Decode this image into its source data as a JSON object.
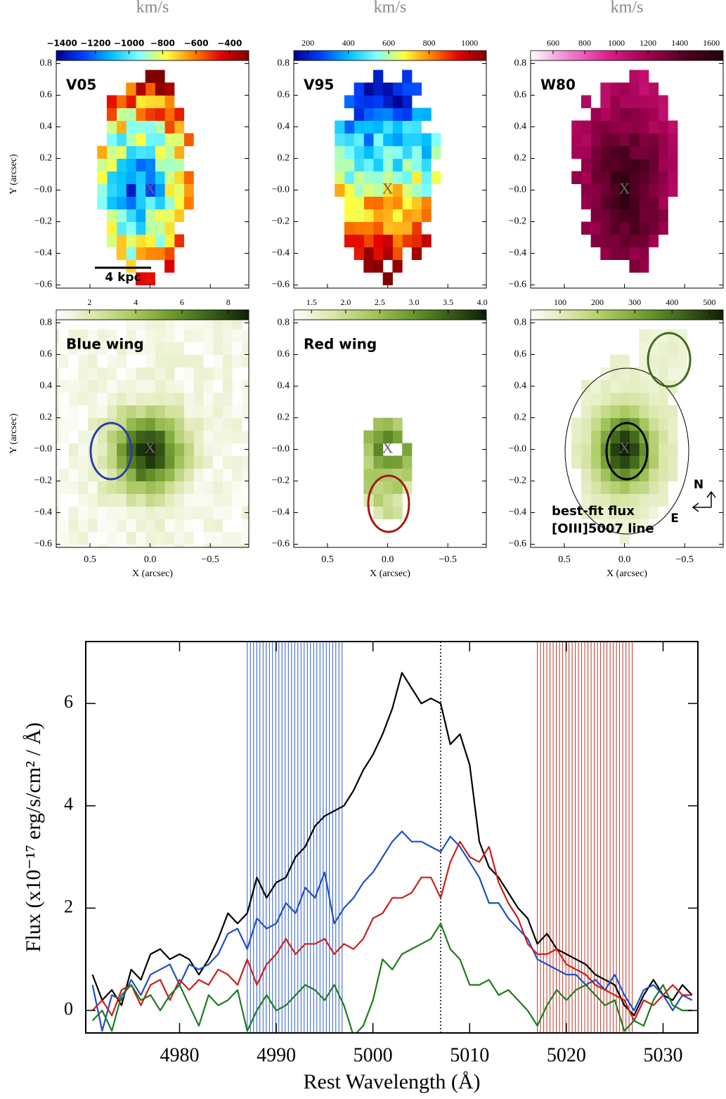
{
  "maps": {
    "axes": {
      "xlabel": "X (arcsec)",
      "ylabel": "Y (arcsec)",
      "xlim": [
        0.78,
        -0.82
      ],
      "ylim": [
        -0.62,
        0.82
      ],
      "xticks": [
        0.5,
        {
          "value": 0,
          "label": "0.0"
        },
        {
          "value": -0.5,
          "label": "−0.5"
        }
      ],
      "yticks": [
        0.8,
        0.6,
        0.4,
        0.2,
        {
          "value": 0,
          "label": "−0.0"
        },
        {
          "value": -0.2,
          "label": "−0.2"
        },
        {
          "value": -0.4,
          "label": "−0.4"
        },
        {
          "value": -0.6,
          "label": "−0.6"
        }
      ]
    },
    "center_marker": "X",
    "panels": [
      {
        "title": "V05",
        "unit": "km/s",
        "scale_bar": "4 kpc",
        "colorbar": {
          "lim": [
            -1434,
            -286
          ],
          "colors": [
            "#00008f",
            "#0040ff",
            "#00c0ff",
            "#80ffff",
            "#ffff40",
            "#ff8000",
            "#e00000",
            "#800000"
          ],
          "ticks": [
            {
              "value": -1400,
              "label": "−1400"
            },
            {
              "value": -1200,
              "label": "−1200"
            },
            {
              "value": -1000,
              "label": "−1000"
            },
            {
              "value": -800,
              "label": "−800"
            },
            {
              "value": -600,
              "label": "−600"
            },
            {
              "value": -400,
              "label": "−400"
            }
          ]
        }
      },
      {
        "title": "V95",
        "unit": "km/s",
        "colorbar": {
          "lim": [
            130,
            1083
          ],
          "colors": [
            "#00008f",
            "#0040ff",
            "#00c0ff",
            "#80ffff",
            "#ffff40",
            "#ff8000",
            "#e00000",
            "#800000"
          ],
          "ticks": [
            200,
            400,
            600,
            800,
            1000
          ]
        }
      },
      {
        "title": "W80",
        "unit": "km/s",
        "colorbar": {
          "lim": [
            458,
            1675
          ],
          "colors": [
            "#ffffff",
            "#f080d0",
            "#e0208a",
            "#a00050",
            "#500020",
            "#200008"
          ],
          "ticks": [
            600,
            800,
            1000,
            1200,
            1400,
            1600
          ]
        }
      },
      {
        "title": "Blue wing",
        "colorbar": {
          "lim": [
            0.56,
            8.89
          ],
          "colors": [
            "#ffffff",
            "#d9e6a8",
            "#a8c860",
            "#6f9a30",
            "#3a5f18",
            "#0f1f05"
          ],
          "ticks": [
            2,
            4,
            6,
            8
          ]
        }
      },
      {
        "title": "Red wing",
        "colorbar": {
          "lim": [
            1.24,
            4.06
          ],
          "colors": [
            "#ffffff",
            "#d9e6a8",
            "#a8c860",
            "#6f9a30",
            "#3a5f18",
            "#0f1f05"
          ],
          "ticks": [
            1.5,
            {
              "value": 2,
              "label": "2.0"
            },
            2.5,
            {
              "value": 3,
              "label": "3.0"
            },
            3.5,
            {
              "value": 4,
              "label": "4.0"
            }
          ]
        }
      },
      {
        "notes": [
          "best-fit flux",
          "[OIII]5007 line"
        ],
        "compass": [
          "N",
          "E"
        ],
        "colorbar": {
          "lim": [
            21,
            537
          ],
          "colors": [
            "#ffffff",
            "#d9e6a8",
            "#a8c860",
            "#6f9a30",
            "#3a5f18",
            "#0f1f05"
          ],
          "ticks": [
            100,
            200,
            300,
            400,
            500
          ]
        }
      }
    ]
  },
  "chart_data": {
    "type": "line",
    "xlabel": "Rest Wavelength (Å)",
    "ylabel": "Flux (x10⁻¹⁷ erg/s/cm² / Å)",
    "xlim": [
      4970.3,
      5033.6
    ],
    "ylim": [
      -0.44,
      7.21
    ],
    "xticks": [
      4980,
      4990,
      5000,
      5010,
      5020,
      5030
    ],
    "yticks": [
      0,
      2,
      4,
      6
    ],
    "vline": 5007,
    "bands": [
      {
        "from": 4987,
        "to": 4997,
        "color": "#2a5cc0"
      },
      {
        "from": 5017,
        "to": 5027,
        "color": "#b83a2a"
      }
    ],
    "x": [
      4971,
      4972,
      4973,
      4974,
      4975,
      4976,
      4977,
      4978,
      4979,
      4980,
      4981,
      4982,
      4983,
      4984,
      4985,
      4986,
      4987,
      4988,
      4989,
      4990,
      4991,
      4992,
      4993,
      4994,
      4995,
      4996,
      4997,
      4998,
      4999,
      5000,
      5001,
      5002,
      5003,
      5004,
      5005,
      5006,
      5007,
      5008,
      5009,
      5010,
      5011,
      5012,
      5013,
      5014,
      5015,
      5016,
      5017,
      5018,
      5019,
      5020,
      5021,
      5022,
      5023,
      5024,
      5025,
      5026,
      5027,
      5028,
      5029,
      5030,
      5031,
      5032,
      5033
    ],
    "series": [
      {
        "color": "#000000",
        "values": [
          0.7,
          0.2,
          0.4,
          0.1,
          0.8,
          0.6,
          1.1,
          1.2,
          1.0,
          1.1,
          1.0,
          0.7,
          1.0,
          1.4,
          1.9,
          1.7,
          1.9,
          2.6,
          2.2,
          2.5,
          2.6,
          3.0,
          3.2,
          3.6,
          3.8,
          3.9,
          4.0,
          4.3,
          4.7,
          5.0,
          5.4,
          5.9,
          6.6,
          6.3,
          6.0,
          6.1,
          6.0,
          5.2,
          5.4,
          4.8,
          3.3,
          2.8,
          2.6,
          2.3,
          2.0,
          1.8,
          1.3,
          1.5,
          1.2,
          1.1,
          1.0,
          0.9,
          0.7,
          0.6,
          0.5,
          0.1,
          -0.1,
          0.3,
          0.6,
          0.3,
          0.2,
          0.5,
          0.3
        ]
      },
      {
        "color": "#1f4fc4",
        "values": [
          0.5,
          -0.4,
          0.3,
          0.2,
          0.6,
          0.3,
          0.7,
          0.8,
          0.9,
          0.5,
          0.9,
          0.8,
          0.9,
          1.1,
          1.5,
          1.6,
          1.2,
          1.8,
          1.6,
          1.7,
          2.1,
          1.9,
          2.4,
          2.2,
          2.7,
          1.7,
          2.0,
          2.2,
          2.5,
          2.7,
          3.0,
          3.3,
          3.5,
          3.3,
          3.3,
          3.2,
          3.1,
          3.4,
          3.2,
          2.9,
          2.6,
          2.1,
          2.1,
          1.8,
          1.6,
          1.4,
          1.0,
          0.9,
          0.8,
          0.7,
          0.7,
          0.5,
          0.6,
          0.4,
          0.7,
          0.3,
          0.0,
          0.4,
          0.5,
          0.3,
          0.0,
          0.3,
          0.2
        ]
      },
      {
        "color": "#c8201a",
        "values": [
          0.0,
          0.2,
          -0.1,
          0.4,
          0.5,
          0.1,
          0.5,
          0.6,
          0.2,
          0.6,
          0.4,
          0.6,
          0.5,
          0.8,
          0.7,
          0.5,
          1.0,
          0.5,
          0.9,
          1.1,
          1.4,
          1.1,
          1.3,
          1.3,
          1.4,
          1.1,
          1.3,
          1.2,
          1.4,
          1.8,
          1.9,
          2.2,
          2.2,
          2.3,
          2.6,
          2.6,
          2.2,
          2.9,
          3.3,
          3.0,
          2.9,
          3.2,
          2.5,
          2.1,
          1.8,
          1.3,
          1.1,
          1.1,
          1.2,
          0.9,
          0.8,
          0.7,
          0.5,
          0.4,
          0.3,
          0.2,
          -0.2,
          0.2,
          0.1,
          0.3,
          0.5,
          0.3,
          0.3
        ]
      },
      {
        "color": "#1f7a1f",
        "values": [
          -0.2,
          0.0,
          -0.4,
          0.3,
          0.5,
          0.2,
          0.3,
          0.0,
          0.3,
          0.5,
          0.1,
          -0.3,
          0.3,
          0.1,
          0.2,
          0.4,
          -0.4,
          0.0,
          0.3,
          0.0,
          0.1,
          0.3,
          0.5,
          0.4,
          0.2,
          0.5,
          0.1,
          -0.5,
          -0.3,
          0.2,
          1.0,
          0.8,
          1.1,
          1.2,
          1.3,
          1.4,
          1.7,
          1.2,
          1.0,
          0.5,
          0.5,
          0.6,
          0.3,
          0.4,
          0.2,
          0.0,
          -0.3,
          0.1,
          0.4,
          0.2,
          0.4,
          0.5,
          0.3,
          0.1,
          0.2,
          -0.4,
          -0.2,
          -0.3,
          0.2,
          0.5,
          0.1,
          0.0,
          0.0
        ]
      }
    ]
  }
}
